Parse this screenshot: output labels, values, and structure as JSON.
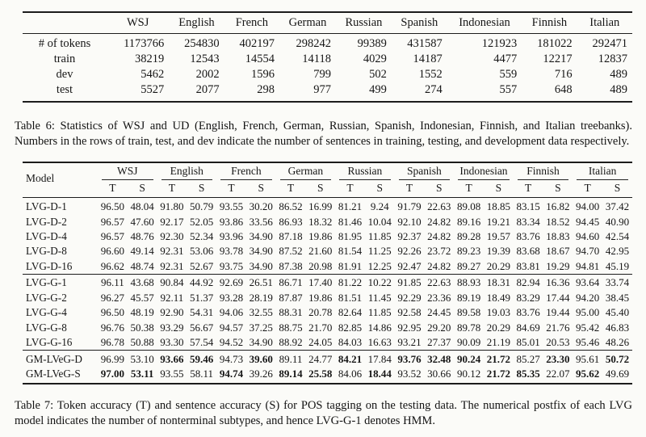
{
  "table6": {
    "corner_label": "",
    "columns": [
      "WSJ",
      "English",
      "French",
      "German",
      "Russian",
      "Spanish",
      "Indonesian",
      "Finnish",
      "Italian"
    ],
    "rows": [
      {
        "label": "# of tokens",
        "values": [
          "1173766",
          "254830",
          "402197",
          "298242",
          "99389",
          "431587",
          "121923",
          "181022",
          "292471"
        ]
      },
      {
        "label": "train",
        "values": [
          "38219",
          "12543",
          "14554",
          "14118",
          "4029",
          "14187",
          "4477",
          "12217",
          "12837"
        ]
      },
      {
        "label": "dev",
        "values": [
          "5462",
          "2002",
          "1596",
          "799",
          "502",
          "1552",
          "559",
          "716",
          "489"
        ]
      },
      {
        "label": "test",
        "values": [
          "5527",
          "2077",
          "298",
          "977",
          "499",
          "274",
          "557",
          "648",
          "489"
        ]
      }
    ],
    "caption": "Table 6: Statistics of WSJ and UD (English, French, German, Russian, Spanish, Indonesian, Finnish, and Italian treebanks). Numbers in the rows of train, test, and dev indicate the number of sentences in training, testing, and development data respectively."
  },
  "table7": {
    "model_header": "Model",
    "languages": [
      "WSJ",
      "English",
      "French",
      "German",
      "Russian",
      "Spanish",
      "Indonesian",
      "Finnish",
      "Italian"
    ],
    "metric_headers": [
      "T",
      "S"
    ],
    "groups": [
      {
        "name": "LVG-D",
        "rows": [
          {
            "model": "LVG-D-1",
            "values": [
              "96.50",
              "48.04",
              "91.80",
              "50.79",
              "93.55",
              "30.20",
              "86.52",
              "16.99",
              "81.21",
              "9.24",
              "91.79",
              "22.63",
              "89.08",
              "18.85",
              "83.15",
              "16.82",
              "94.00",
              "37.42"
            ],
            "bold": []
          },
          {
            "model": "LVG-D-2",
            "values": [
              "96.57",
              "47.60",
              "92.17",
              "52.05",
              "93.86",
              "33.56",
              "86.93",
              "18.32",
              "81.46",
              "10.04",
              "92.10",
              "24.82",
              "89.16",
              "19.21",
              "83.34",
              "18.52",
              "94.45",
              "40.90"
            ],
            "bold": []
          },
          {
            "model": "LVG-D-4",
            "values": [
              "96.57",
              "48.76",
              "92.30",
              "52.34",
              "93.96",
              "34.90",
              "87.18",
              "19.86",
              "81.95",
              "11.85",
              "92.37",
              "24.82",
              "89.28",
              "19.57",
              "83.76",
              "18.83",
              "94.60",
              "42.54"
            ],
            "bold": []
          },
          {
            "model": "LVG-D-8",
            "values": [
              "96.60",
              "49.14",
              "92.31",
              "53.06",
              "93.78",
              "34.90",
              "87.52",
              "21.60",
              "81.54",
              "11.25",
              "92.26",
              "23.72",
              "89.23",
              "19.39",
              "83.68",
              "18.67",
              "94.70",
              "42.95"
            ],
            "bold": []
          },
          {
            "model": "LVG-D-16",
            "values": [
              "96.62",
              "48.74",
              "92.31",
              "52.67",
              "93.75",
              "34.90",
              "87.38",
              "20.98",
              "81.91",
              "12.25",
              "92.47",
              "24.82",
              "89.27",
              "20.29",
              "83.81",
              "19.29",
              "94.81",
              "45.19"
            ],
            "bold": []
          }
        ]
      },
      {
        "name": "LVG-G",
        "rows": [
          {
            "model": "LVG-G-1",
            "values": [
              "96.11",
              "43.68",
              "90.84",
              "44.92",
              "92.69",
              "26.51",
              "86.71",
              "17.40",
              "81.22",
              "10.22",
              "91.85",
              "22.63",
              "88.93",
              "18.31",
              "82.94",
              "16.36",
              "93.64",
              "33.74"
            ],
            "bold": []
          },
          {
            "model": "LVG-G-2",
            "values": [
              "96.27",
              "45.57",
              "92.11",
              "51.37",
              "93.28",
              "28.19",
              "87.87",
              "19.86",
              "81.51",
              "11.45",
              "92.29",
              "23.36",
              "89.19",
              "18.49",
              "83.29",
              "17.44",
              "94.20",
              "38.45"
            ],
            "bold": []
          },
          {
            "model": "LVG-G-4",
            "values": [
              "96.50",
              "48.19",
              "92.90",
              "54.31",
              "94.06",
              "32.55",
              "88.31",
              "20.78",
              "82.64",
              "11.85",
              "92.58",
              "24.45",
              "89.58",
              "19.03",
              "83.76",
              "19.44",
              "95.00",
              "45.40"
            ],
            "bold": []
          },
          {
            "model": "LVG-G-8",
            "values": [
              "96.76",
              "50.38",
              "93.29",
              "56.67",
              "94.57",
              "37.25",
              "88.75",
              "21.70",
              "82.85",
              "14.86",
              "92.95",
              "29.20",
              "89.78",
              "20.29",
              "84.69",
              "21.76",
              "95.42",
              "46.83"
            ],
            "bold": []
          },
          {
            "model": "LVG-G-16",
            "values": [
              "96.78",
              "50.88",
              "93.30",
              "57.54",
              "94.52",
              "34.90",
              "88.92",
              "24.05",
              "84.03",
              "16.63",
              "93.21",
              "27.37",
              "90.09",
              "21.19",
              "85.01",
              "20.53",
              "95.46",
              "48.26"
            ],
            "bold": []
          }
        ]
      },
      {
        "name": "GM-LVeG",
        "rows": [
          {
            "model": "GM-LVeG-D",
            "values": [
              "96.99",
              "53.10",
              "93.66",
              "59.46",
              "94.73",
              "39.60",
              "89.11",
              "24.77",
              "84.21",
              "17.84",
              "93.76",
              "32.48",
              "90.24",
              "21.72",
              "85.27",
              "23.30",
              "95.61",
              "50.72"
            ],
            "bold": [
              2,
              3,
              5,
              8,
              10,
              11,
              12,
              13,
              15,
              17
            ]
          },
          {
            "model": "GM-LVeG-S",
            "values": [
              "97.00",
              "53.11",
              "93.55",
              "58.11",
              "94.74",
              "39.26",
              "89.14",
              "25.58",
              "84.06",
              "18.44",
              "93.52",
              "30.66",
              "90.12",
              "21.72",
              "85.35",
              "22.07",
              "95.62",
              "49.69"
            ],
            "bold": [
              0,
              1,
              4,
              6,
              7,
              9,
              13,
              14,
              16
            ]
          }
        ]
      }
    ],
    "caption": "Table 7: Token accuracy (T) and sentence accuracy (S) for POS tagging on the testing data. The numerical postfix of each LVG model indicates the number of nonterminal subtypes, and hence LVG-G-1 denotes HMM."
  }
}
